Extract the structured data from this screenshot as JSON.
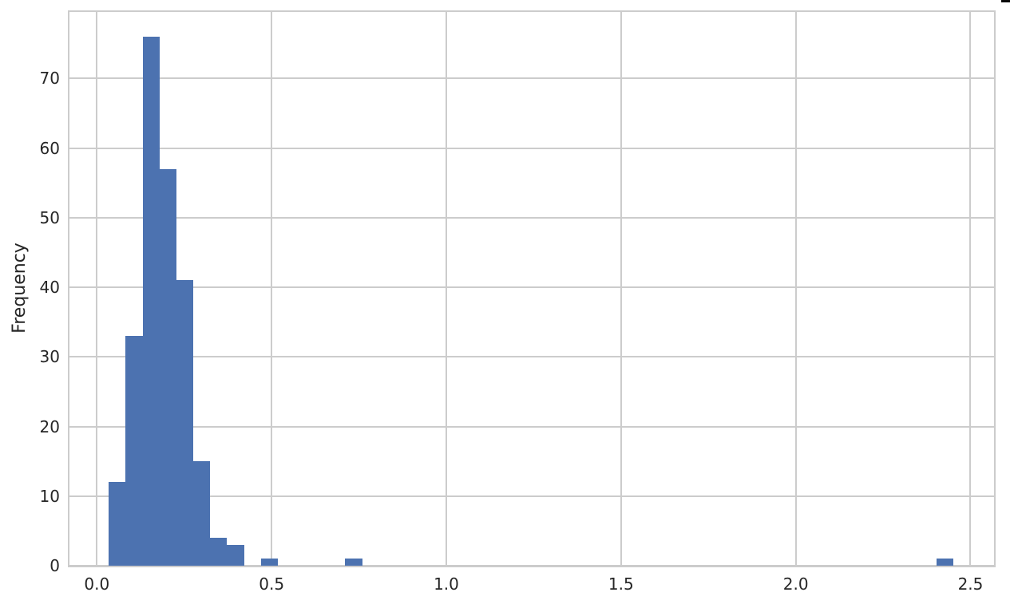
{
  "chart_data": {
    "type": "bar",
    "subtype": "histogram",
    "title": "",
    "xlabel": "",
    "ylabel": "Frequency",
    "legend": null,
    "grid": true,
    "xlim": [
      -0.083,
      2.572
    ],
    "ylim": [
      0,
      79.8
    ],
    "x_ticks": [
      {
        "value": 0.0,
        "label": "0.0"
      },
      {
        "value": 0.5,
        "label": "0.5"
      },
      {
        "value": 1.0,
        "label": "1.0"
      },
      {
        "value": 1.5,
        "label": "1.5"
      },
      {
        "value": 2.0,
        "label": "2.0"
      },
      {
        "value": 2.5,
        "label": "2.5"
      }
    ],
    "y_ticks": [
      {
        "value": 0,
        "label": "0"
      },
      {
        "value": 10,
        "label": "10"
      },
      {
        "value": 20,
        "label": "20"
      },
      {
        "value": 30,
        "label": "30"
      },
      {
        "value": 40,
        "label": "40"
      },
      {
        "value": 50,
        "label": "50"
      },
      {
        "value": 60,
        "label": "60"
      },
      {
        "value": 70,
        "label": "70"
      }
    ],
    "bin_width": 0.0483,
    "bins": [
      {
        "x0": 0.034,
        "x1": 0.082,
        "count": 12
      },
      {
        "x0": 0.082,
        "x1": 0.131,
        "count": 33
      },
      {
        "x0": 0.131,
        "x1": 0.179,
        "count": 76
      },
      {
        "x0": 0.179,
        "x1": 0.227,
        "count": 57
      },
      {
        "x0": 0.227,
        "x1": 0.276,
        "count": 41
      },
      {
        "x0": 0.276,
        "x1": 0.324,
        "count": 15
      },
      {
        "x0": 0.324,
        "x1": 0.372,
        "count": 4
      },
      {
        "x0": 0.372,
        "x1": 0.421,
        "count": 3
      },
      {
        "x0": 0.469,
        "x1": 0.517,
        "count": 1
      },
      {
        "x0": 0.71,
        "x1": 0.759,
        "count": 1
      },
      {
        "x0": 2.402,
        "x1": 2.45,
        "count": 1
      }
    ],
    "colors": {
      "bar_fill": "#4C72B0",
      "grid": "#cccccc",
      "spine": "#cccccc",
      "text": "#262626",
      "background": "#ffffff",
      "artifact_mark": "#0a0a0a"
    }
  }
}
